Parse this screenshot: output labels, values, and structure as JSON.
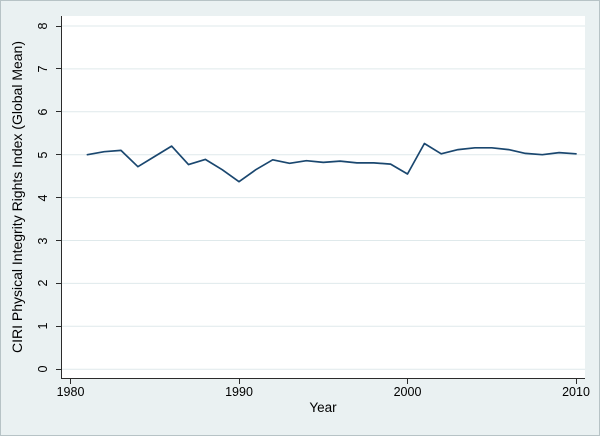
{
  "chart_data": {
    "type": "line",
    "title": "",
    "xlabel": "Year",
    "ylabel": "CIRI Physical Integrity Rights Index (Global Mean)",
    "xlim": [
      1980,
      2010
    ],
    "ylim": [
      0,
      8
    ],
    "x_ticks": [
      1980,
      1990,
      2000,
      2010
    ],
    "y_ticks": [
      0,
      1,
      2,
      3,
      4,
      5,
      6,
      7,
      8
    ],
    "grid": "horizontal",
    "legend": "none",
    "series": [
      {
        "name": "CIRI Physical Integrity Rights Index (Global Mean)",
        "color": "#1a476f",
        "x": [
          1981,
          1982,
          1983,
          1984,
          1985,
          1986,
          1987,
          1988,
          1989,
          1990,
          1991,
          1992,
          1993,
          1994,
          1995,
          1996,
          1997,
          1998,
          1999,
          2000,
          2001,
          2002,
          2003,
          2004,
          2005,
          2006,
          2007,
          2008,
          2009,
          2010
        ],
        "y": [
          5.0,
          5.07,
          5.1,
          4.72,
          4.96,
          5.2,
          4.77,
          4.89,
          4.65,
          4.37,
          4.65,
          4.88,
          4.8,
          4.86,
          4.82,
          4.85,
          4.81,
          4.81,
          4.78,
          4.55,
          5.26,
          5.02,
          5.12,
          5.16,
          5.16,
          5.12,
          5.03,
          5.0,
          5.05,
          5.02
        ]
      }
    ]
  },
  "colors": {
    "background": "#eaf1f2",
    "plot_background": "#ffffff",
    "gridline": "#dfe9eb",
    "axis": "#2b2b2b",
    "text": "#000000",
    "line": "#1a476f"
  }
}
